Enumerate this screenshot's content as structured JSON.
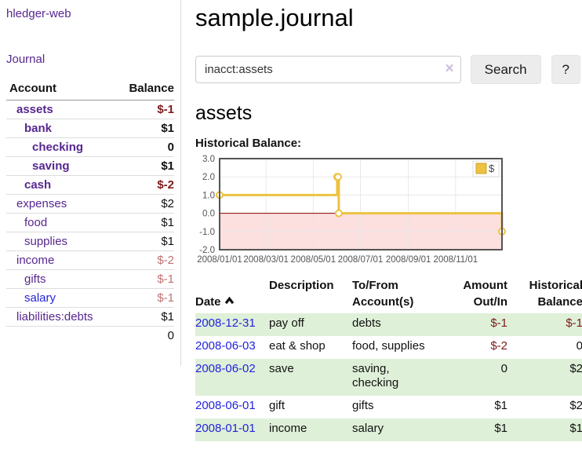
{
  "app": {
    "brand": "hledger-web"
  },
  "nav": {
    "journal": "Journal"
  },
  "sidebar": {
    "col_account": "Account",
    "col_balance": "Balance",
    "accounts": [
      {
        "name": "assets",
        "balance": "$-1"
      },
      {
        "name": "bank",
        "balance": "$1"
      },
      {
        "name": "checking",
        "balance": "0"
      },
      {
        "name": "saving",
        "balance": "$1"
      },
      {
        "name": "cash",
        "balance": "$-2"
      },
      {
        "name": "expenses",
        "balance": "$2"
      },
      {
        "name": "food",
        "balance": "$1"
      },
      {
        "name": "supplies",
        "balance": "$1"
      },
      {
        "name": "income",
        "balance": "$-2"
      },
      {
        "name": "gifts",
        "balance": "$-1"
      },
      {
        "name": "salary",
        "balance": "$-1"
      },
      {
        "name": "liabilities:debts",
        "balance": "$1"
      }
    ],
    "total": "0"
  },
  "header": {
    "title": "sample.journal"
  },
  "search": {
    "value": "inacct:assets",
    "clear_icon": "×",
    "button_label": "Search",
    "help_label": "?"
  },
  "account_view": {
    "heading": "assets",
    "chart_title": "Historical Balance:"
  },
  "chart_data": {
    "type": "line",
    "step": true,
    "title": "Historical Balance:",
    "legend": {
      "label": "$",
      "position": "top-right"
    },
    "series": [
      {
        "name": "$",
        "color": "#edc240",
        "points": [
          [
            "2008-01-01",
            1
          ],
          [
            "2008-06-01",
            2
          ],
          [
            "2008-06-02",
            2
          ],
          [
            "2008-06-03",
            0
          ],
          [
            "2008-12-31",
            -1
          ]
        ]
      }
    ],
    "xlim": [
      "2008-01-01",
      "2008-12-31"
    ],
    "ylim": [
      -2,
      3
    ],
    "x_ticks": [
      "2008/01/01",
      "2008/03/01",
      "2008/05/01",
      "2008/07/01",
      "2008/09/01",
      "2008/11/01"
    ],
    "y_ticks": [
      "3.0",
      "2.0",
      "1.0",
      "0.0",
      "-1.0",
      "-2.0"
    ],
    "grid": true,
    "colors": {
      "negative_region": "#fcdfdf",
      "zero_line": "#8b0000",
      "grid_line": "#e8e8e8",
      "border": "#545454",
      "tick_label": "#545454"
    }
  },
  "register": {
    "columns": {
      "date": "Date",
      "description": "Description",
      "accounts": "To/From\nAccount(s)",
      "amount": "Amount\nOut/In",
      "balance": "Historical\nBalance"
    },
    "rows": [
      {
        "date": "2008-12-31",
        "description": "pay off",
        "accounts": "debts",
        "amount": "$-1",
        "balance": "$-1"
      },
      {
        "date": "2008-06-03",
        "description": "eat & shop",
        "accounts": "food, supplies",
        "amount": "$-2",
        "balance": "0"
      },
      {
        "date": "2008-06-02",
        "description": "save",
        "accounts": "saving,\nchecking",
        "amount": "0",
        "balance": "$2"
      },
      {
        "date": "2008-06-01",
        "description": "gift",
        "accounts": "gifts",
        "amount": "$1",
        "balance": "$2"
      },
      {
        "date": "2008-01-01",
        "description": "income",
        "accounts": "salary",
        "amount": "$1",
        "balance": "$1"
      }
    ]
  }
}
